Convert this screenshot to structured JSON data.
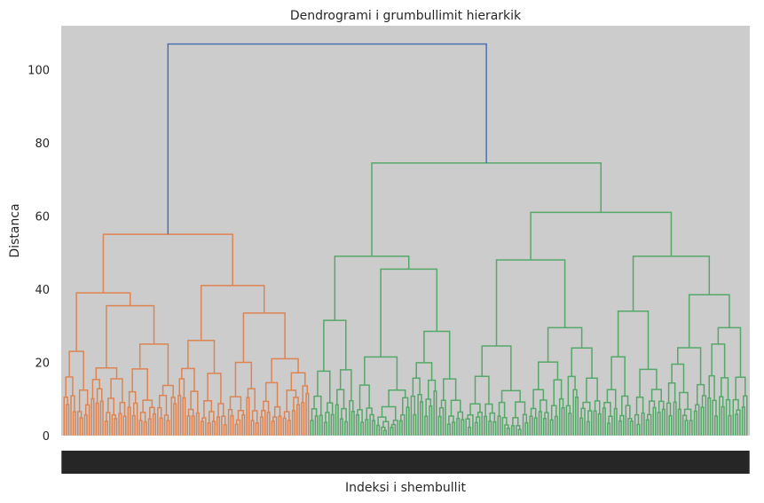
{
  "chart_data": {
    "type": "dendrogram",
    "title": "Dendrogrami i grumbullimit hierarkik",
    "xlabel": "Indeksi i shembullit",
    "ylabel": "Distanca",
    "ylim": [
      0,
      112
    ],
    "yticks": [
      0,
      20,
      40,
      60,
      80,
      100
    ],
    "grid": false,
    "background": "#cccccc",
    "leaf_tick_color": "#262626",
    "leaf_count": 300,
    "clusters": [
      {
        "name": "cluster-1",
        "color": "#dd8452",
        "leaf_range": [
          0,
          108
        ],
        "root_height": 55
      },
      {
        "name": "cluster-2",
        "color": "#55a868",
        "leaf_range": [
          108,
          300
        ],
        "root_height": 74.5
      }
    ],
    "merges": [
      {
        "height": 107,
        "color": "#4c72b0",
        "note": "root"
      },
      {
        "height": 74.5,
        "color": "#55a868"
      },
      {
        "height": 61,
        "color": "#55a868"
      },
      {
        "height": 55,
        "color": "#dd8452"
      },
      {
        "height": 49,
        "color": "#55a868"
      },
      {
        "height": 49,
        "color": "#55a868"
      },
      {
        "height": 48,
        "color": "#55a868"
      },
      {
        "height": 45.5,
        "color": "#55a868"
      },
      {
        "height": 41,
        "color": "#dd8452"
      },
      {
        "height": 39,
        "color": "#dd8452"
      },
      {
        "height": 38.5,
        "color": "#55a868"
      },
      {
        "height": 35.5,
        "color": "#dd8452"
      },
      {
        "height": 34,
        "color": "#55a868"
      },
      {
        "height": 33.5,
        "color": "#dd8452"
      },
      {
        "height": 31.5,
        "color": "#55a868"
      },
      {
        "height": 29.5,
        "color": "#55a868"
      },
      {
        "height": 28.5,
        "color": "#55a868"
      }
    ]
  }
}
